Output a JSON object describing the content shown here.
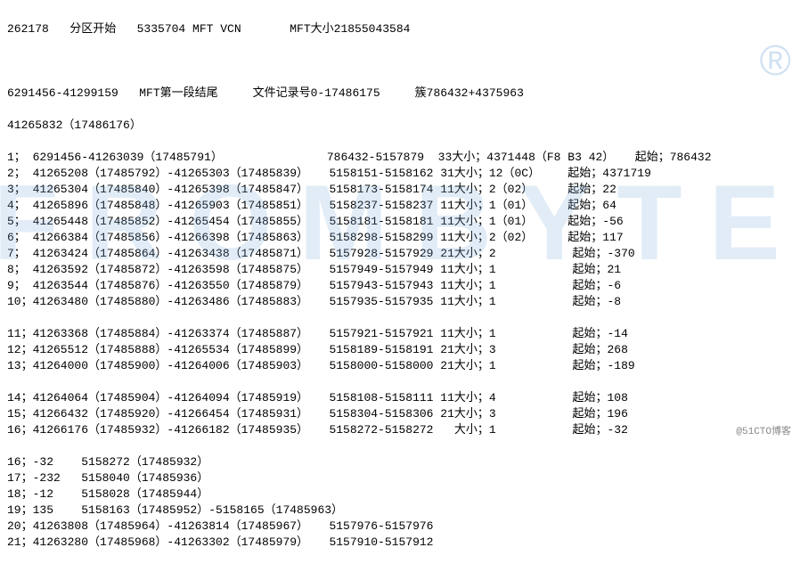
{
  "header": {
    "line1": "262178   分区开始   5335704 MFT VCN       MFT大小21855043584",
    "line2": "6291456-41299159   MFT第一段结尾     文件记录号0-17486175     簇786432+4375963",
    "line3": "41265832（17486176）"
  },
  "rows": [
    "1； 6291456-41263039（17485791）               786432-5157879  33大小；4371448（F8 B3 42）   起始；786432",
    "2； 41265208（17485792）-41265303（17485839）   5158151-5158162 31大小；12（0C）    起始；4371719",
    "3； 41265304（17485840）-41265398（17485847）   5158173-5158174 11大小；2（02）     起始；22",
    "4； 41265896（17485848）-41265903（17485851）   5158237-5158237 11大小；1（01）     起始；64",
    "5； 41265448（17485852）-41265454（17485855）   5158181-5158181 11大小；1（01）     起始；-56",
    "6； 41266384（17485856）-41266398（17485863）   5158298-5158299 11大小；2（02）     起始；117",
    "7； 41263424（17485864）-41263438（17485871）   5157928-5157929 21大小；2           起始；-370",
    "8； 41263592（17485872）-41263598（17485875）   5157949-5157949 11大小；1           起始；21",
    "9； 41263544（17485876）-41263550（17485879）   5157943-5157943 11大小；1           起始；-6",
    "10；41263480（17485880）-41263486（17485883）   5157935-5157935 11大小；1           起始；-8",
    "",
    "11；41263368（17485884）-41263374（17485887）   5157921-5157921 11大小；1           起始；-14",
    "12；41265512（17485888）-41265534（17485899）   5158189-5158191 21大小；3           起始；268",
    "13；41264000（17485900）-41264006（17485903）   5158000-5158000 21大小；1           起始；-189",
    "",
    "14；41264064（17485904）-41264094（17485919）   5158108-5158111 11大小；4           起始；108",
    "15；41266432（17485920）-41266454（17485931）   5158304-5158306 21大小；3           起始；196",
    "16；41266176（17485932）-41266182（17485935）   5158272-5158272   大小；1           起始；-32",
    "",
    "16；-32    5158272（17485932）",
    "17；-232   5158040（17485936）",
    "18；-12    5158028（17485944）",
    "19；135    5158163（17485952）-5158165（17485963）",
    "20；41263808（17485964）-41263814（17485967）   5157976-5157976",
    "21；41263280（17485968）-41263302（17485979）   5157910-5157912"
  ],
  "watermark": "FROMBYTE",
  "watermark_r": "®",
  "credit": "@51CTO博客"
}
